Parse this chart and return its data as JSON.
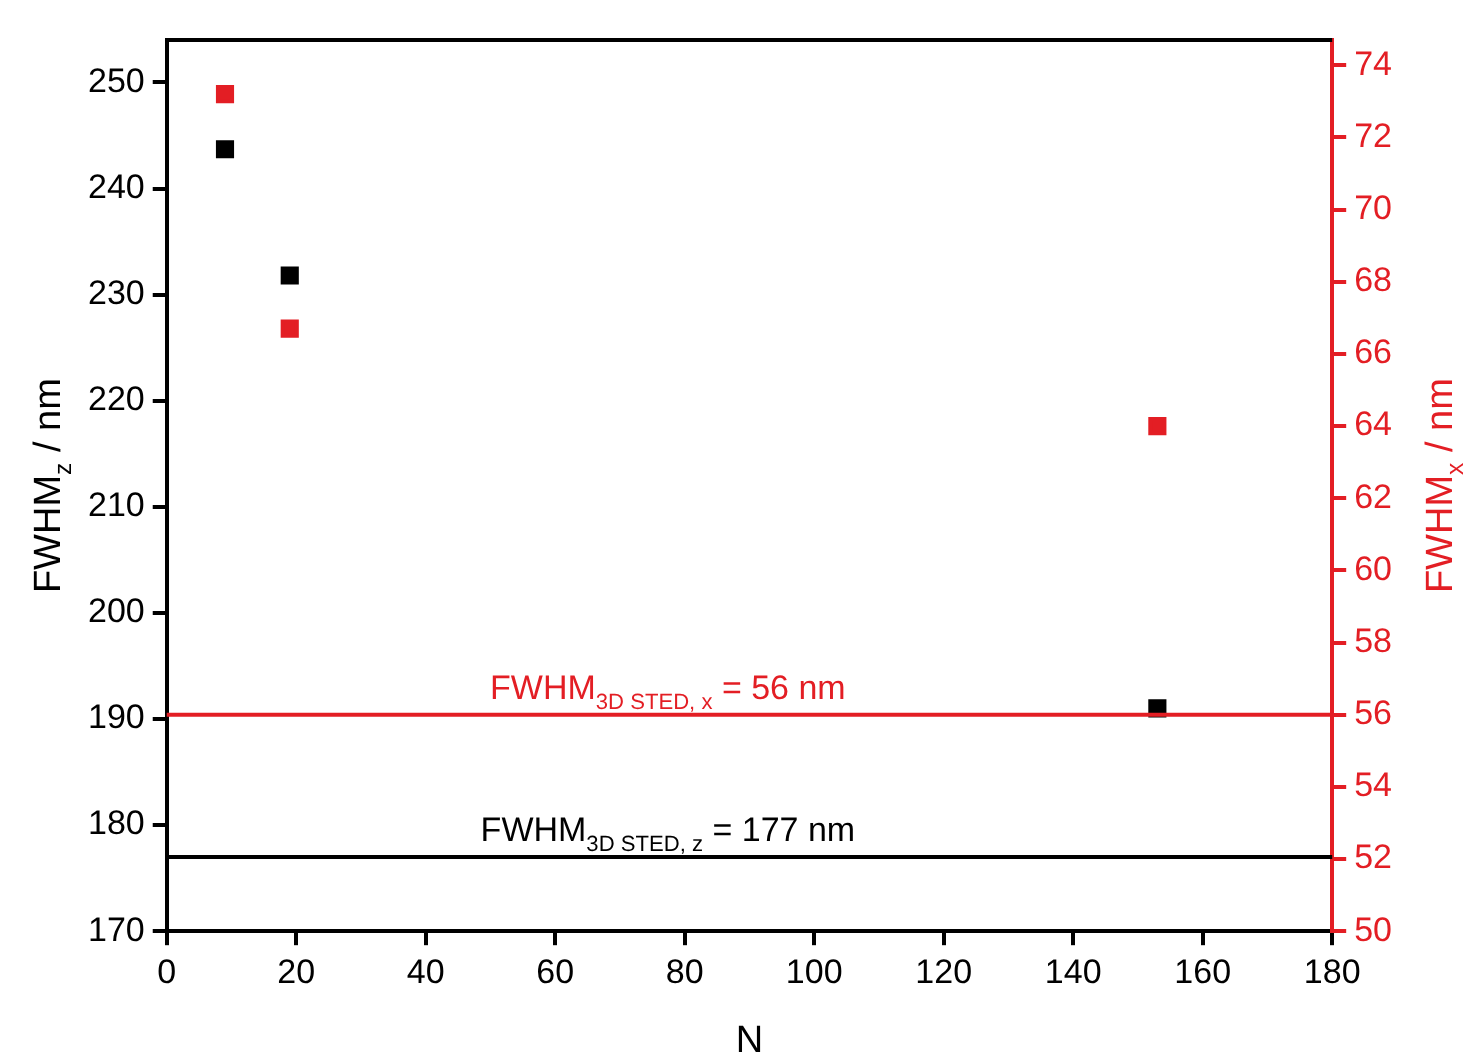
{
  "chart_data": {
    "type": "scatter",
    "xlabel": "N",
    "ylabel": "FWHM$_{z}$ / nm",
    "y2label": "FWHM$_{x}$ / nm",
    "x": [
      9,
      19,
      153
    ],
    "series": [
      {
        "color": "#000000",
        "values": [
          243.7,
          231.8,
          191
        ]
      },
      {
        "color": "#e31e24",
        "axis": "y2",
        "values": [
          73.2,
          66.7,
          64
        ]
      }
    ],
    "xlim": [
      0,
      180
    ],
    "xticks": [
      0,
      20,
      40,
      60,
      80,
      100,
      120,
      140,
      160,
      180
    ],
    "ylim": [
      170,
      254
    ],
    "yticks": [
      170,
      180,
      190,
      200,
      210,
      220,
      230,
      240,
      250
    ],
    "y2lim": [
      50,
      74.7
    ],
    "y2ticks": [
      50,
      52,
      54,
      56,
      58,
      60,
      62,
      64,
      66,
      68,
      70,
      72,
      74
    ],
    "ref_lines": [
      {
        "axis": "y2",
        "value": 56,
        "label": "FWHM$_{3D STED, x}$ = 56 nm",
        "color": "#e31e24"
      },
      {
        "axis": "y",
        "value": 177,
        "label": "FWHM$_{3D STED, z}$ = 177 nm",
        "color": "#000000"
      }
    ],
    "marker": "square",
    "grid": false,
    "legend": false
  }
}
